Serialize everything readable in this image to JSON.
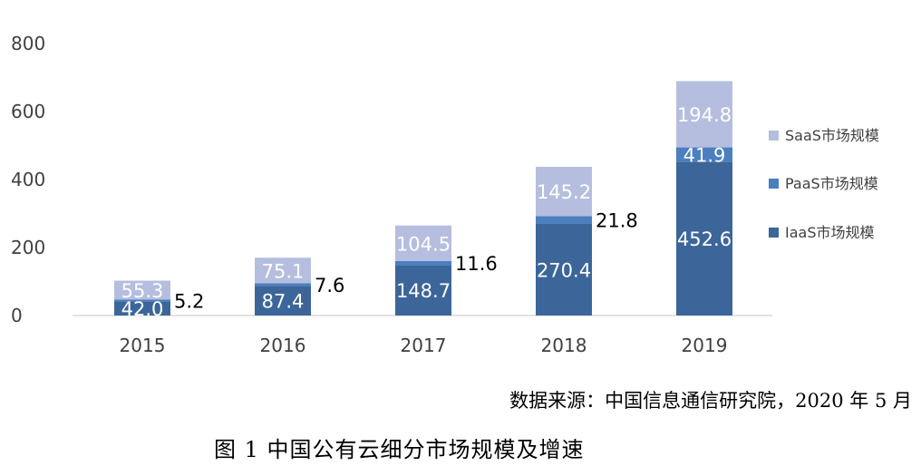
{
  "chart_data": {
    "type": "bar",
    "stacked": true,
    "categories": [
      "2015",
      "2016",
      "2017",
      "2018",
      "2019"
    ],
    "series": [
      {
        "name": "IaaS市场规模",
        "values": [
          42.0,
          87.4,
          148.7,
          270.4,
          452.6
        ],
        "color": "#3c6699"
      },
      {
        "name": "PaaS市场规模",
        "values": [
          5.2,
          7.6,
          11.6,
          21.8,
          41.9
        ],
        "color": "#4a7fc0"
      },
      {
        "name": "SaaS市场规模",
        "values": [
          55.3,
          75.1,
          104.5,
          145.2,
          194.8
        ],
        "color": "#b6bedf"
      }
    ],
    "data_labels": {
      "IaaS市场规模": [
        "42.0",
        "87.4",
        "148.7",
        "270.4",
        "452.6"
      ],
      "PaaS市场规模": [
        "5.2",
        "7.6",
        "11.6",
        "21.8",
        "41.9"
      ],
      "SaaS市场规模": [
        "55.3",
        "75.1",
        "104.5",
        "145.2",
        "194.8"
      ]
    },
    "yticks": [
      "0",
      "200",
      "400",
      "600",
      "800"
    ],
    "ylim": [
      0,
      800
    ],
    "grid": false,
    "legend_position": "right",
    "xlabel": "",
    "ylabel": ""
  },
  "source_note": "数据来源：中国信息通信研究院，2020 年 5 月",
  "caption": "图 1  中国公有云细分市场规模及增速"
}
